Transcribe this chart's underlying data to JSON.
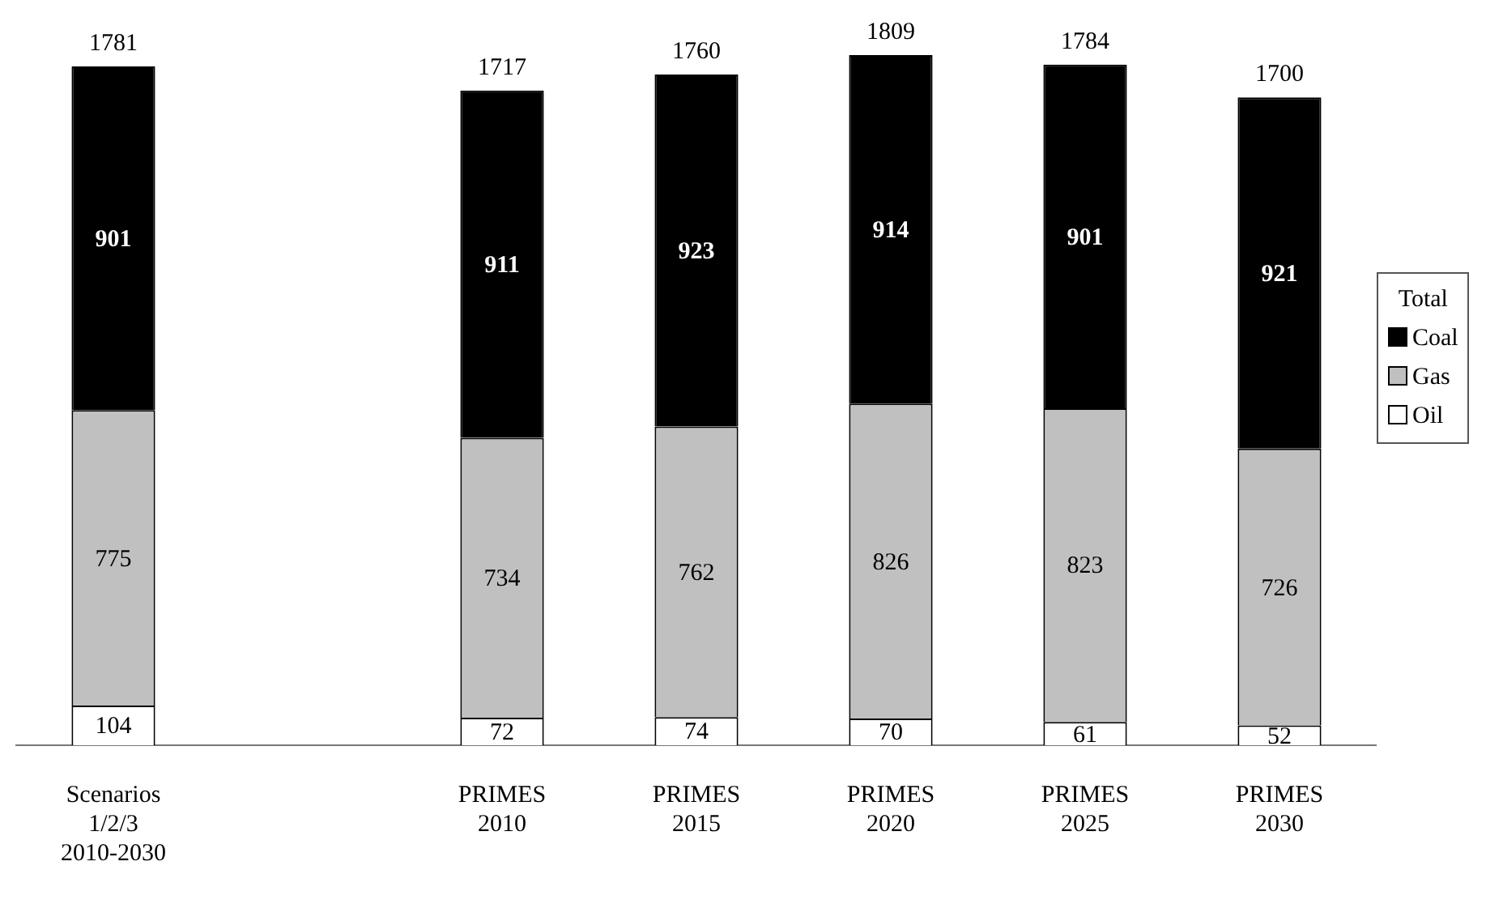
{
  "chart_data": {
    "type": "bar",
    "stacked": true,
    "categories": [
      "Scenarios\n1/2/3\n2010-2030",
      null,
      "PRIMES\n2010",
      "PRIMES\n2015",
      "PRIMES\n2020",
      "PRIMES\n2025",
      "PRIMES\n2030"
    ],
    "series": [
      {
        "name": "Oil",
        "color": "#ffffff",
        "values": [
          104,
          null,
          72,
          74,
          70,
          61,
          52
        ]
      },
      {
        "name": "Gas",
        "color": "#c0c0c0",
        "values": [
          775,
          null,
          734,
          762,
          826,
          823,
          726
        ]
      },
      {
        "name": "Coal",
        "color": "#000000",
        "values": [
          901,
          null,
          911,
          923,
          914,
          901,
          921
        ]
      }
    ],
    "totals": [
      "1781",
      null,
      "1717",
      "1760",
      "1809",
      "1784",
      "1700"
    ],
    "data_labels": true,
    "grid": false,
    "tick_labels": "x",
    "legend": "right",
    "legend_title": "Total"
  }
}
